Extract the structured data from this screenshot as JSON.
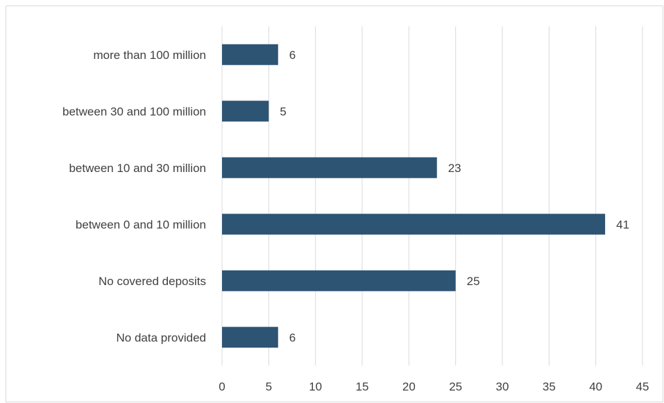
{
  "chart_data": {
    "type": "bar",
    "orientation": "horizontal",
    "categories": [
      "more than 100 million",
      "between 30 and 100 million",
      "between 10 and 30 million",
      "between 0 and 10 million",
      "No covered deposits",
      "No data provided"
    ],
    "values": [
      6,
      5,
      23,
      41,
      25,
      6
    ],
    "xlim": [
      0,
      45
    ],
    "xticks": [
      0,
      5,
      10,
      15,
      20,
      25,
      30,
      35,
      40,
      45
    ],
    "grid": true,
    "legend": "none",
    "bar_color": "#2e5473",
    "title": "",
    "xlabel": "",
    "ylabel": ""
  }
}
